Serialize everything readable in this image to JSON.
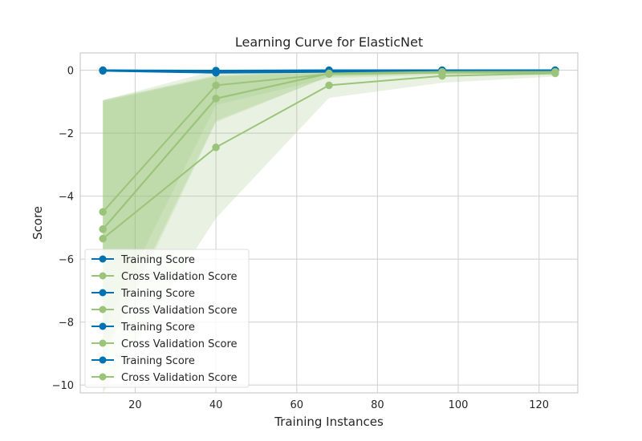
{
  "chart_data": {
    "type": "line",
    "title": "Learning Curve for ElasticNet",
    "xlabel": "Training Instances",
    "ylabel": "Score",
    "xlim": [
      6.4,
      129.6
    ],
    "ylim": [
      -10.25,
      0.55
    ],
    "xticks": [
      20,
      40,
      60,
      80,
      100,
      120
    ],
    "xtick_labels": [
      "20",
      "40",
      "60",
      "80",
      "100",
      "120"
    ],
    "yticks": [
      0,
      -2,
      -4,
      -6,
      -8,
      -10
    ],
    "ytick_labels": [
      "0",
      "−2",
      "−4",
      "−6",
      "−8",
      "−10"
    ],
    "grid": true,
    "legend_position": "lower-left",
    "colors": {
      "training": "#0072b2",
      "validation": "#9bc47a",
      "band": "#9bc47a",
      "grid": "#d3d3d3"
    },
    "series": [
      {
        "name": "Training Score",
        "kind": "training",
        "x": [
          12,
          40,
          68,
          96,
          124
        ],
        "y": [
          0.0,
          -0.03,
          0.0,
          0.0,
          0.0
        ],
        "band_low": [
          -0.02,
          -0.06,
          -0.01,
          0.0,
          0.0
        ],
        "band_high": [
          0.02,
          0.0,
          0.01,
          0.0,
          0.0
        ]
      },
      {
        "name": "Cross Validation Score",
        "kind": "validation",
        "x": [
          12,
          40,
          68,
          96,
          124
        ],
        "y": [
          -5.35,
          -2.45,
          -0.48,
          -0.18,
          -0.1
        ],
        "band_low": [
          -10.5,
          -4.7,
          -0.88,
          -0.4,
          -0.2
        ],
        "band_high": [
          -0.95,
          -0.2,
          -0.08,
          -0.02,
          0.0
        ]
      },
      {
        "name": "Training Score",
        "kind": "training",
        "x": [
          12,
          40,
          68,
          96,
          124
        ],
        "y": [
          0.0,
          -0.05,
          -0.02,
          0.0,
          0.0
        ],
        "band_low": [
          -0.02,
          -0.08,
          -0.03,
          -0.01,
          0.0
        ],
        "band_high": [
          0.02,
          0.0,
          0.0,
          0.0,
          0.0
        ]
      },
      {
        "name": "Cross Validation Score",
        "kind": "validation",
        "x": [
          12,
          40,
          68,
          96,
          124
        ],
        "y": [
          -5.05,
          -0.9,
          -0.1,
          -0.05,
          -0.05
        ],
        "band_low": [
          -9.2,
          -1.65,
          -0.2,
          -0.1,
          -0.1
        ],
        "band_high": [
          -0.95,
          -0.15,
          0.0,
          0.0,
          0.0
        ]
      },
      {
        "name": "Training Score",
        "kind": "training",
        "x": [
          12,
          40,
          68,
          96,
          124
        ],
        "y": [
          -0.02,
          -0.08,
          -0.05,
          -0.02,
          0.0
        ],
        "band_low": [
          -0.04,
          -0.1,
          -0.07,
          -0.03,
          -0.01
        ],
        "band_high": [
          0.0,
          -0.04,
          -0.03,
          -0.01,
          0.0
        ]
      },
      {
        "name": "Cross Validation Score",
        "kind": "validation",
        "x": [
          12,
          40,
          68,
          96,
          124
        ],
        "y": [
          -4.5,
          -0.48,
          -0.12,
          -0.08,
          -0.08
        ],
        "band_low": [
          -8.3,
          -1.1,
          -0.25,
          -0.15,
          -0.15
        ],
        "band_high": [
          -0.95,
          0.0,
          0.0,
          0.0,
          0.0
        ]
      },
      {
        "name": "Training Score",
        "kind": "training",
        "x": [
          12,
          40,
          68,
          96,
          124
        ],
        "y": [
          0.0,
          -0.01,
          0.0,
          0.0,
          0.0
        ],
        "band_low": [
          -0.01,
          -0.02,
          -0.01,
          0.0,
          0.0
        ],
        "band_high": [
          0.01,
          0.0,
          0.0,
          0.0,
          0.0
        ]
      },
      {
        "name": "Cross Validation Score",
        "kind": "validation",
        "x": [
          12,
          40,
          68,
          96,
          124
        ],
        "y": [
          -5.05,
          -0.9,
          -0.1,
          -0.05,
          -0.05
        ],
        "band_low": [
          -9.0,
          -1.6,
          -0.2,
          -0.1,
          -0.1
        ],
        "band_high": [
          -1.0,
          -0.2,
          0.0,
          0.0,
          0.0
        ]
      }
    ]
  }
}
